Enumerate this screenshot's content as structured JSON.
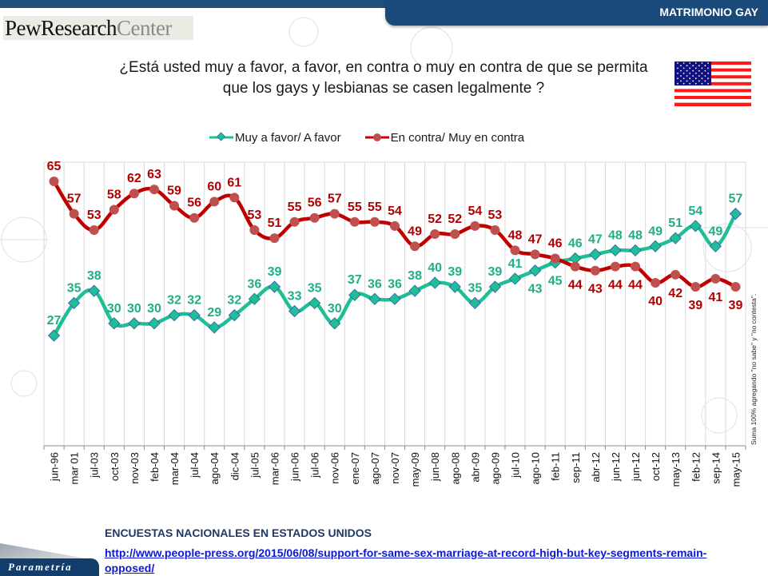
{
  "header": {
    "section_title": "MATRIMONIO GAY",
    "logo_bold": "PewResearch",
    "logo_light": "Center",
    "question_line1": "¿Está usted muy a favor, a favor, en contra o muy en contra de que se permita",
    "question_line2": "que los gays y lesbianas se casen legalmente ?",
    "flag_icon": "us-flag-icon"
  },
  "footer": {
    "source_title": "ENCUESTAS NACIONALES EN ESTADOS UNIDOS",
    "source_link": "http://www.people-press.org/2015/06/08/support-for-same-sex-marriage-at-record-high-but-key-segments-remain-opposed/",
    "brand": "Parametría",
    "note": "Suma 100% agregando \"no sabe\" y \"no contesta\"."
  },
  "colors": {
    "favor": "#1fbf95",
    "contra": "#c00000",
    "banner": "#1a4a7a",
    "link": "#0b18d6"
  },
  "chart_data": {
    "type": "line",
    "title": "¿Está usted muy a favor, a favor, en contra o muy en contra de que se permita que los gays y lesbianas se casen legalmente ?",
    "xlabel": "",
    "ylabel": "",
    "ylim": [
      0,
      70
    ],
    "grid": "vertical",
    "legend_position": "top-center",
    "categories": [
      "jun-96",
      "mar 01",
      "jul-03",
      "oct-03",
      "nov-03",
      "feb-04",
      "mar-04",
      "jul-04",
      "ago-04",
      "dic-04",
      "jul-05",
      "mar-06",
      "jun-06",
      "jul-06",
      "nov-06",
      "ene-07",
      "ago-07",
      "nov-07",
      "may-09",
      "jun-08",
      "ago-08",
      "abr-09",
      "ago-09",
      "jul-10",
      "ago-10",
      "feb-11",
      "sep-11",
      "abr-12",
      "jun-12",
      "jun-12",
      "oct-12",
      "may-13",
      "feb-12",
      "sep-14",
      "may-15"
    ],
    "series": [
      {
        "name": "Muy a favor/ A favor",
        "marker": "diamond",
        "values": [
          27,
          35,
          38,
          30,
          30,
          30,
          32,
          32,
          29,
          32,
          36,
          39,
          33,
          35,
          30,
          37,
          36,
          36,
          38,
          40,
          39,
          35,
          39,
          41,
          43,
          45,
          46,
          47,
          48,
          48,
          49,
          51,
          54,
          49,
          57
        ]
      },
      {
        "name": "En contra/ Muy en contra",
        "marker": "circle",
        "values": [
          65,
          57,
          53,
          58,
          62,
          63,
          59,
          56,
          60,
          61,
          53,
          51,
          55,
          56,
          57,
          55,
          55,
          54,
          49,
          52,
          52,
          54,
          53,
          48,
          47,
          46,
          44,
          43,
          44,
          44,
          40,
          42,
          39,
          41,
          39
        ]
      }
    ]
  }
}
